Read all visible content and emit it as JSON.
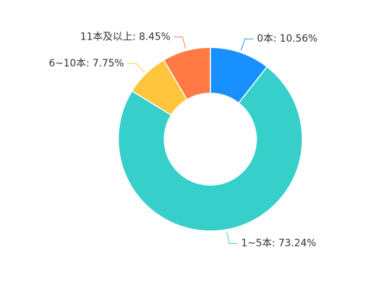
{
  "chart_data": {
    "type": "donut",
    "categories": [
      "0本",
      "1~5本",
      "6~10本",
      "11本及以上"
    ],
    "values": [
      10.56,
      73.24,
      7.75,
      8.45
    ],
    "value_labels": [
      ": 10.56%",
      ": 73.24%",
      ": 7.75%",
      ": 8.45%"
    ],
    "colors": [
      "#1890ff",
      "#36cfc9",
      "#ffc53d",
      "#ff7a45"
    ]
  }
}
